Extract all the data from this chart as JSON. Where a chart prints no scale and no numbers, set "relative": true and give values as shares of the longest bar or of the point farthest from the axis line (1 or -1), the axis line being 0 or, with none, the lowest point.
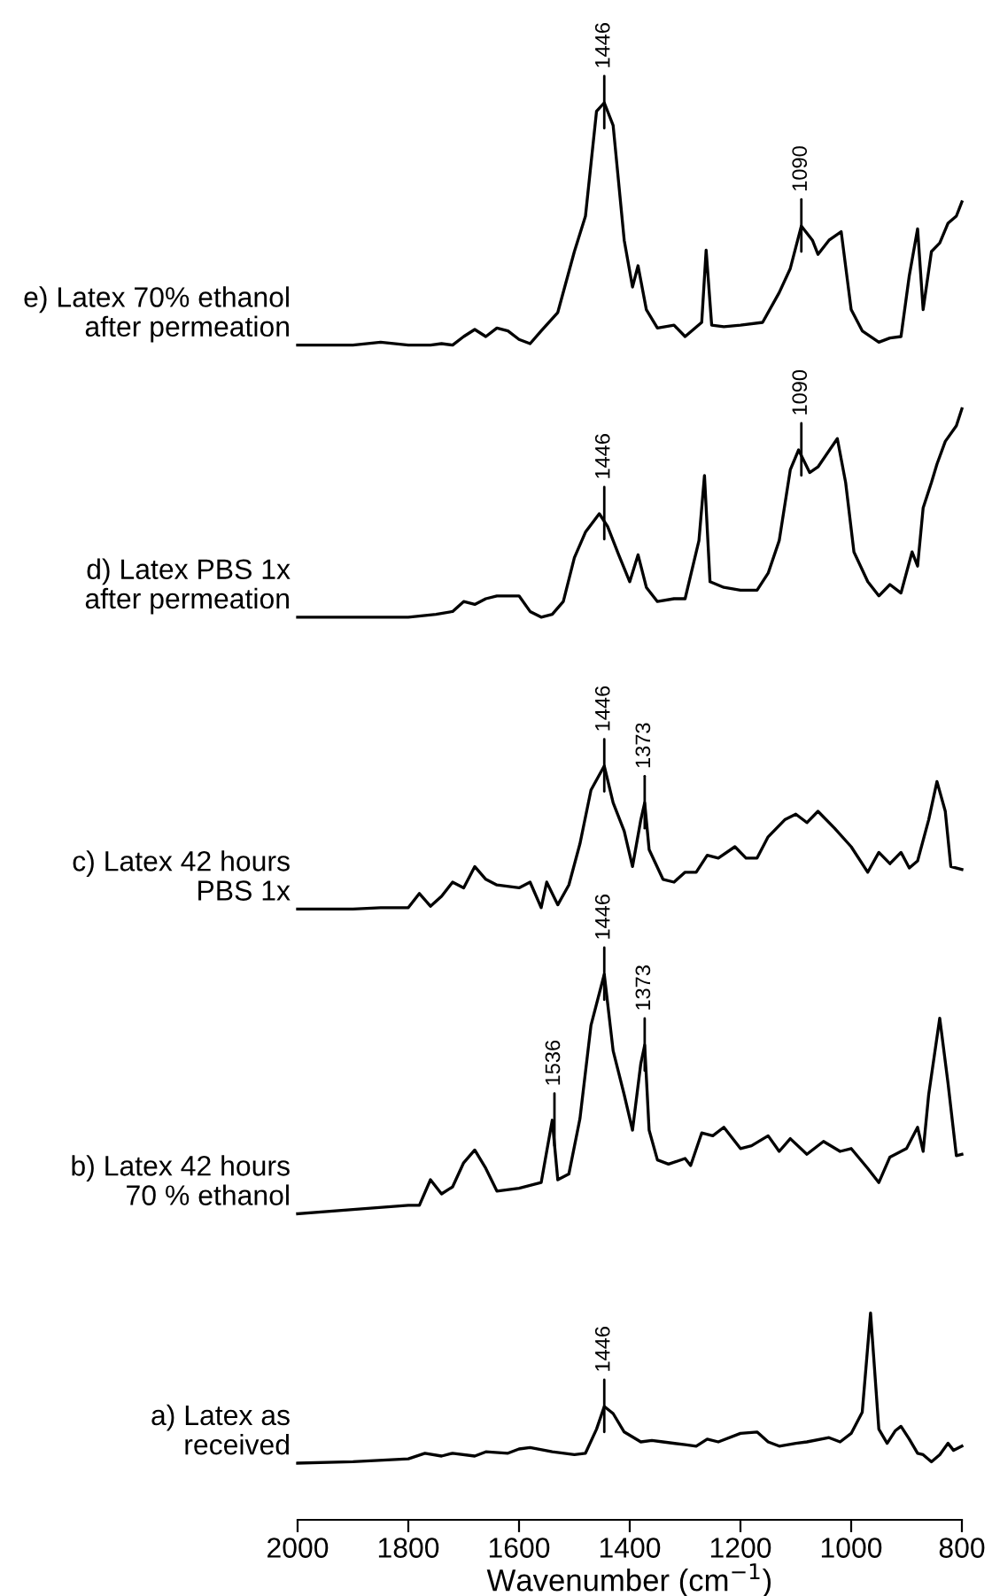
{
  "chart_data": {
    "type": "line",
    "relative": true,
    "xlim": [
      2000,
      800
    ],
    "xticks": [
      2000,
      1800,
      1600,
      1400,
      1200,
      1000,
      800
    ],
    "xlabel": "Wavenumber (cm$^{−1}$)",
    "series": [
      {
        "name": "e) Latex 70% ethanol\nafter permeation",
        "color": "#000000",
        "x": [
          2000,
          1900,
          1850,
          1800,
          1760,
          1740,
          1720,
          1700,
          1680,
          1660,
          1640,
          1620,
          1600,
          1580,
          1560,
          1530,
          1500,
          1480,
          1460,
          1446,
          1430,
          1410,
          1395,
          1385,
          1370,
          1350,
          1320,
          1300,
          1270,
          1262,
          1252,
          1230,
          1200,
          1160,
          1130,
          1110,
          1090,
          1070,
          1060,
          1040,
          1018,
          1000,
          980,
          950,
          930,
          910,
          895,
          880,
          870,
          855,
          840,
          825,
          810,
          800
        ],
        "values": [
          0.829,
          0.829,
          0.831,
          0.829,
          0.829,
          0.83,
          0.829,
          0.835,
          0.84,
          0.835,
          0.841,
          0.839,
          0.833,
          0.83,
          0.839,
          0.852,
          0.895,
          0.92,
          0.994,
          1.0,
          0.984,
          0.903,
          0.87,
          0.885,
          0.854,
          0.841,
          0.843,
          0.835,
          0.845,
          0.896,
          0.843,
          0.842,
          0.843,
          0.845,
          0.866,
          0.883,
          0.913,
          0.903,
          0.893,
          0.903,
          0.909,
          0.854,
          0.839,
          0.831,
          0.834,
          0.835,
          0.878,
          0.911,
          0.854,
          0.895,
          0.901,
          0.915,
          0.92,
          0.93
        ]
      },
      {
        "name": "d) Latex PBS 1x\nafter permeation",
        "color": "#000000",
        "x": [
          2000,
          1900,
          1800,
          1750,
          1720,
          1700,
          1680,
          1660,
          1640,
          1600,
          1580,
          1560,
          1540,
          1520,
          1500,
          1480,
          1455,
          1440,
          1420,
          1400,
          1385,
          1370,
          1350,
          1320,
          1300,
          1275,
          1265,
          1255,
          1230,
          1200,
          1170,
          1150,
          1130,
          1110,
          1095,
          1075,
          1060,
          1025,
          1010,
          995,
          970,
          950,
          930,
          910,
          890,
          880,
          870,
          855,
          845,
          830,
          810,
          800
        ],
        "values": [
          0.637,
          0.637,
          0.637,
          0.639,
          0.641,
          0.648,
          0.646,
          0.65,
          0.652,
          0.652,
          0.641,
          0.637,
          0.639,
          0.648,
          0.679,
          0.697,
          0.71,
          0.701,
          0.681,
          0.662,
          0.681,
          0.658,
          0.648,
          0.65,
          0.65,
          0.691,
          0.737,
          0.662,
          0.658,
          0.656,
          0.656,
          0.668,
          0.691,
          0.741,
          0.755,
          0.739,
          0.743,
          0.763,
          0.732,
          0.683,
          0.662,
          0.652,
          0.66,
          0.654,
          0.683,
          0.673,
          0.714,
          0.732,
          0.745,
          0.761,
          0.772,
          0.784
        ]
      },
      {
        "name": "c) Latex 42 hours\nPBS 1x",
        "color": "#000000",
        "x": [
          2000,
          1900,
          1850,
          1800,
          1780,
          1760,
          1740,
          1720,
          1700,
          1680,
          1660,
          1640,
          1600,
          1580,
          1560,
          1550,
          1530,
          1510,
          1490,
          1470,
          1446,
          1430,
          1410,
          1395,
          1380,
          1373,
          1365,
          1340,
          1320,
          1300,
          1280,
          1260,
          1240,
          1210,
          1190,
          1170,
          1150,
          1120,
          1100,
          1080,
          1060,
          1030,
          1000,
          970,
          950,
          930,
          910,
          895,
          880,
          860,
          845,
          830,
          820,
          800
        ],
        "values": [
          0.431,
          0.431,
          0.432,
          0.432,
          0.442,
          0.433,
          0.44,
          0.45,
          0.446,
          0.461,
          0.452,
          0.448,
          0.446,
          0.45,
          0.432,
          0.45,
          0.434,
          0.448,
          0.477,
          0.515,
          0.532,
          0.506,
          0.486,
          0.461,
          0.494,
          0.506,
          0.473,
          0.452,
          0.45,
          0.457,
          0.457,
          0.469,
          0.467,
          0.475,
          0.467,
          0.467,
          0.482,
          0.494,
          0.498,
          0.492,
          0.5,
          0.488,
          0.475,
          0.457,
          0.471,
          0.463,
          0.471,
          0.46,
          0.465,
          0.494,
          0.521,
          0.5,
          0.461,
          0.459
        ]
      },
      {
        "name": "b) Latex 42 hours\n70 % ethanol",
        "color": "#000000",
        "x": [
          2000,
          1900,
          1800,
          1780,
          1760,
          1740,
          1720,
          1700,
          1680,
          1660,
          1640,
          1600,
          1560,
          1540,
          1530,
          1510,
          1490,
          1470,
          1446,
          1430,
          1410,
          1395,
          1380,
          1373,
          1365,
          1350,
          1330,
          1300,
          1290,
          1270,
          1250,
          1230,
          1200,
          1180,
          1150,
          1130,
          1110,
          1080,
          1050,
          1020,
          1000,
          970,
          950,
          930,
          900,
          880,
          870,
          860,
          840,
          825,
          810,
          800
        ],
        "values": [
          0.216,
          0.219,
          0.222,
          0.222,
          0.24,
          0.23,
          0.235,
          0.252,
          0.261,
          0.248,
          0.232,
          0.234,
          0.238,
          0.282,
          0.24,
          0.244,
          0.283,
          0.349,
          0.385,
          0.331,
          0.3,
          0.275,
          0.322,
          0.335,
          0.275,
          0.254,
          0.251,
          0.255,
          0.25,
          0.273,
          0.271,
          0.277,
          0.262,
          0.264,
          0.271,
          0.26,
          0.269,
          0.258,
          0.267,
          0.26,
          0.262,
          0.248,
          0.238,
          0.256,
          0.262,
          0.277,
          0.26,
          0.3,
          0.354,
          0.308,
          0.257,
          0.258
        ]
      },
      {
        "name": "a) Latex as\nreceived",
        "color": "#000000",
        "x": [
          2000,
          1900,
          1800,
          1770,
          1740,
          1720,
          1680,
          1660,
          1620,
          1600,
          1580,
          1540,
          1500,
          1480,
          1460,
          1446,
          1430,
          1410,
          1380,
          1360,
          1340,
          1300,
          1280,
          1260,
          1240,
          1200,
          1170,
          1150,
          1130,
          1100,
          1080,
          1040,
          1020,
          1000,
          980,
          965,
          950,
          935,
          920,
          910,
          895,
          880,
          870,
          855,
          840,
          825,
          815,
          800
        ],
        "values": [
          0.04,
          0.041,
          0.043,
          0.047,
          0.045,
          0.047,
          0.045,
          0.048,
          0.047,
          0.05,
          0.051,
          0.048,
          0.046,
          0.047,
          0.064,
          0.08,
          0.075,
          0.062,
          0.055,
          0.056,
          0.055,
          0.053,
          0.052,
          0.057,
          0.055,
          0.061,
          0.062,
          0.055,
          0.052,
          0.054,
          0.055,
          0.058,
          0.055,
          0.061,
          0.076,
          0.146,
          0.064,
          0.054,
          0.063,
          0.066,
          0.057,
          0.047,
          0.046,
          0.041,
          0.046,
          0.054,
          0.049,
          0.052
        ]
      }
    ],
    "annotations": [
      {
        "text": "1446",
        "x": 1446,
        "y": 1.0
      },
      {
        "text": "1090",
        "x": 1090,
        "y": 0.913
      },
      {
        "text": "1446",
        "x": 1446,
        "y": 0.71
      },
      {
        "text": "1090",
        "x": 1090,
        "y": 0.755
      },
      {
        "text": "1446",
        "x": 1446,
        "y": 0.532
      },
      {
        "text": "1373",
        "x": 1373,
        "y": 0.506
      },
      {
        "text": "1536",
        "x": 1536,
        "y": 0.282
      },
      {
        "text": "1446",
        "x": 1446,
        "y": 0.385
      },
      {
        "text": "1373",
        "x": 1373,
        "y": 0.335
      },
      {
        "text": "1446",
        "x": 1446,
        "y": 0.08
      }
    ]
  }
}
